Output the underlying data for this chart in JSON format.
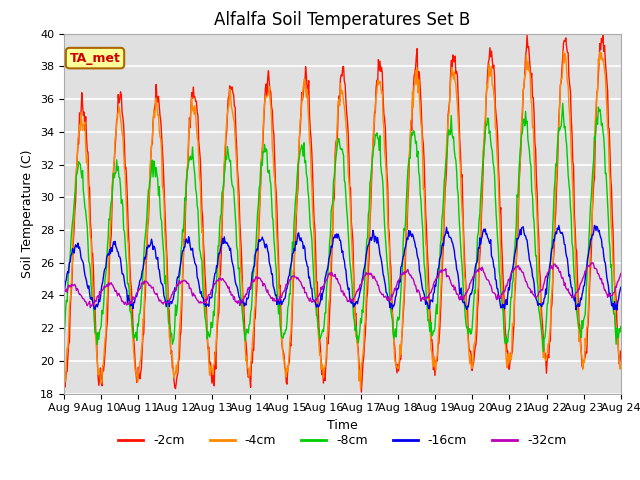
{
  "title": "Alfalfa Soil Temperatures Set B",
  "xlabel": "Time",
  "ylabel": "Soil Temperature (C)",
  "ylim": [
    18,
    40
  ],
  "x_tick_labels": [
    "Aug 9",
    "Aug 10",
    "Aug 11",
    "Aug 12",
    "Aug 13",
    "Aug 14",
    "Aug 15",
    "Aug 16",
    "Aug 17",
    "Aug 18",
    "Aug 19",
    "Aug 20",
    "Aug 21",
    "Aug 22",
    "Aug 23",
    "Aug 24"
  ],
  "annotation_text": "TA_met",
  "annotation_color": "#cc0000",
  "annotation_bg": "#ffff99",
  "annotation_border": "#aa6600",
  "fig_facecolor": "#ffffff",
  "plot_facecolor": "#e0e0e0",
  "series_colors": [
    "#ff1100",
    "#ff8800",
    "#00cc00",
    "#0000ee",
    "#bb00bb"
  ],
  "series_labels": [
    "-2cm",
    "-4cm",
    "-8cm",
    "-16cm",
    "-32cm"
  ],
  "title_fontsize": 12,
  "axis_label_fontsize": 9,
  "tick_fontsize": 8,
  "legend_fontsize": 9,
  "grid_color": "#ffffff",
  "linewidth": 1.0,
  "num_points": 720,
  "days": 15
}
